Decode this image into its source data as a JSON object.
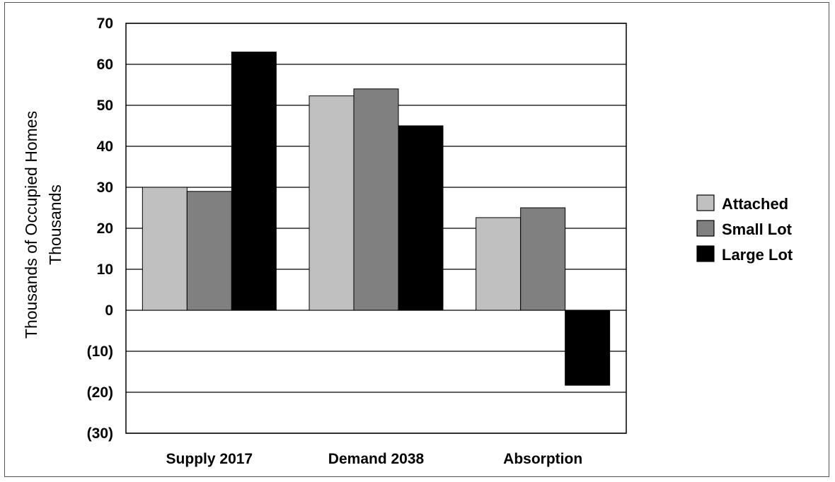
{
  "chart_data": {
    "type": "bar",
    "title": "",
    "xlabel": "",
    "ylabel": "Thousands of Occupied Homes",
    "ylabel_line2": "Thousands",
    "categories": [
      "Supply 2017",
      "Demand 2038",
      "Absorption"
    ],
    "series": [
      {
        "name": "Attached",
        "color": "#c0c0c0",
        "values": [
          30,
          52.3,
          22.6
        ]
      },
      {
        "name": "Small Lot",
        "color": "#808080",
        "values": [
          29,
          54,
          25
        ]
      },
      {
        "name": "Large Lot",
        "color": "#000000",
        "values": [
          63,
          45,
          -18.3
        ]
      }
    ],
    "ylim": [
      -30,
      70
    ],
    "y_ticks": [
      70,
      60,
      50,
      40,
      30,
      20,
      10,
      0,
      -10,
      -20,
      -30
    ],
    "y_tick_labels": [
      "70",
      "60",
      "50",
      "40",
      "30",
      "20",
      "10",
      "0",
      "(10)",
      "(20)",
      "(30)"
    ],
    "grid": true,
    "legend_position": "right"
  }
}
